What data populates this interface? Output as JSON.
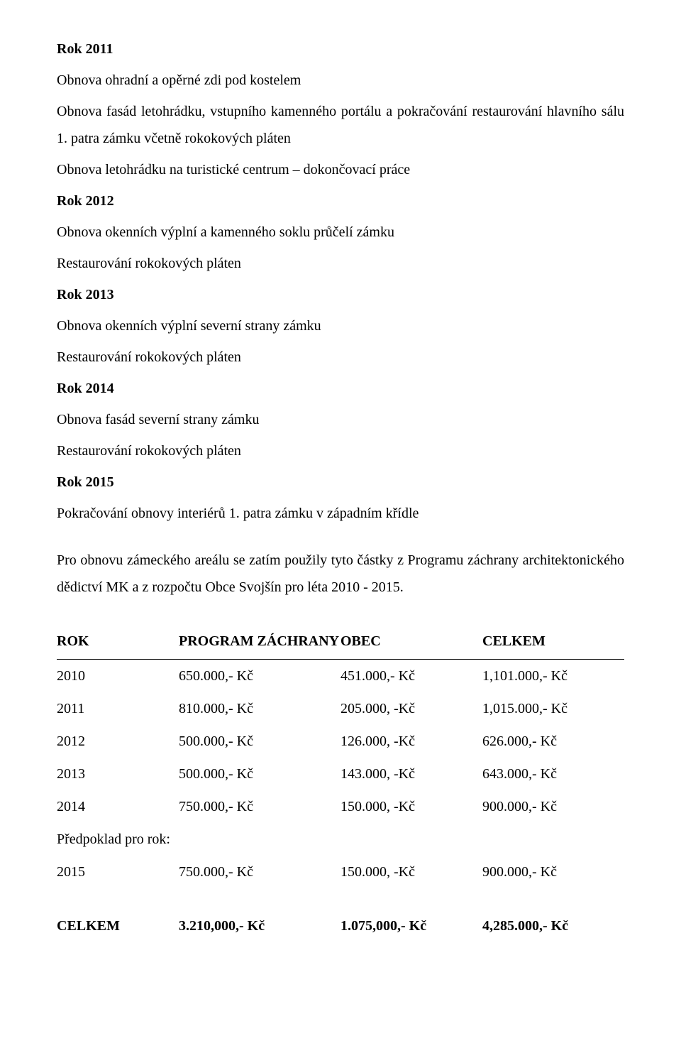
{
  "doc": {
    "font_family": "Times New Roman",
    "base_fontsize_pt": 15,
    "text_color": "#000000",
    "background_color": "#ffffff",
    "line_height": 1.9
  },
  "heading_2011": "Rok 2011",
  "p_2011_1": "Obnova ohradní a opěrné zdi pod kostelem",
  "p_2011_2": "Obnova fasád letohrádku, vstupního kamenného portálu a pokračování restaurování hlavního sálu 1. patra zámku včetně rokokových pláten",
  "p_2011_3": "Obnova letohrádku na turistické centrum – dokončovací práce",
  "heading_2012": "Rok 2012",
  "p_2012_1": "Obnova okenních výplní a kamenného soklu průčelí zámku",
  "p_2012_2": "Restaurování rokokových pláten",
  "heading_2013": "Rok 2013",
  "p_2013_1": "Obnova okenních výplní severní strany zámku",
  "p_2013_2": "Restaurování rokokových pláten",
  "heading_2014": "Rok 2014",
  "p_2014_1": "Obnova fasád severní strany zámku",
  "p_2014_2": "Restaurování rokokových pláten",
  "heading_2015": "Rok 2015",
  "p_2015_1": "Pokračování obnovy interiérů 1. patra zámku v západním křídle",
  "summary_para": "Pro obnovu zámeckého areálu se zatím použily tyto částky z Programu záchrany architektonického dědictví MK a z rozpočtu Obce Svojšín pro léta  2010 - 2015.",
  "table": {
    "type": "table",
    "header_border_color": "#000000",
    "columns": [
      {
        "key": "rok",
        "label": "ROK",
        "width_pct": 14,
        "align": "left"
      },
      {
        "key": "program",
        "label": "PROGRAM ZÁCHRANY",
        "width_pct": 36,
        "align": "left"
      },
      {
        "key": "obec",
        "label": "OBEC",
        "width_pct": 25,
        "align": "left"
      },
      {
        "key": "celkem",
        "label": "CELKEM",
        "width_pct": 25,
        "align": "left"
      }
    ],
    "rows": [
      {
        "rok": "2010",
        "program": "650.000,- Kč",
        "obec": "451.000,- Kč",
        "celkem": "1,101.000,- Kč"
      },
      {
        "rok": "2011",
        "program": "810.000,- Kč",
        "obec": "205.000, -Kč",
        "celkem": "1,015.000,- Kč"
      },
      {
        "rok": "2012",
        "program": "500.000,- Kč",
        "obec": "126.000, -Kč",
        "celkem": "626.000,- Kč"
      },
      {
        "rok": "2013",
        "program": "500.000,- Kč",
        "obec": "143.000, -Kč",
        "celkem": "643.000,- Kč"
      },
      {
        "rok": "2014",
        "program": "750.000,- Kč",
        "obec": "150.000, -Kč",
        "celkem": "900.000,- Kč"
      }
    ],
    "forecast_label": "Předpoklad pro rok:",
    "forecast_row": {
      "rok": "2015",
      "program": "750.000,- Kč",
      "obec": "150.000, -Kč",
      "celkem": "900.000,- Kč"
    }
  },
  "totals": {
    "label": "CELKEM",
    "program": "3.210,000,- Kč",
    "obec": "1.075,000,- Kč",
    "celkem": "4,285.000,- Kč"
  }
}
